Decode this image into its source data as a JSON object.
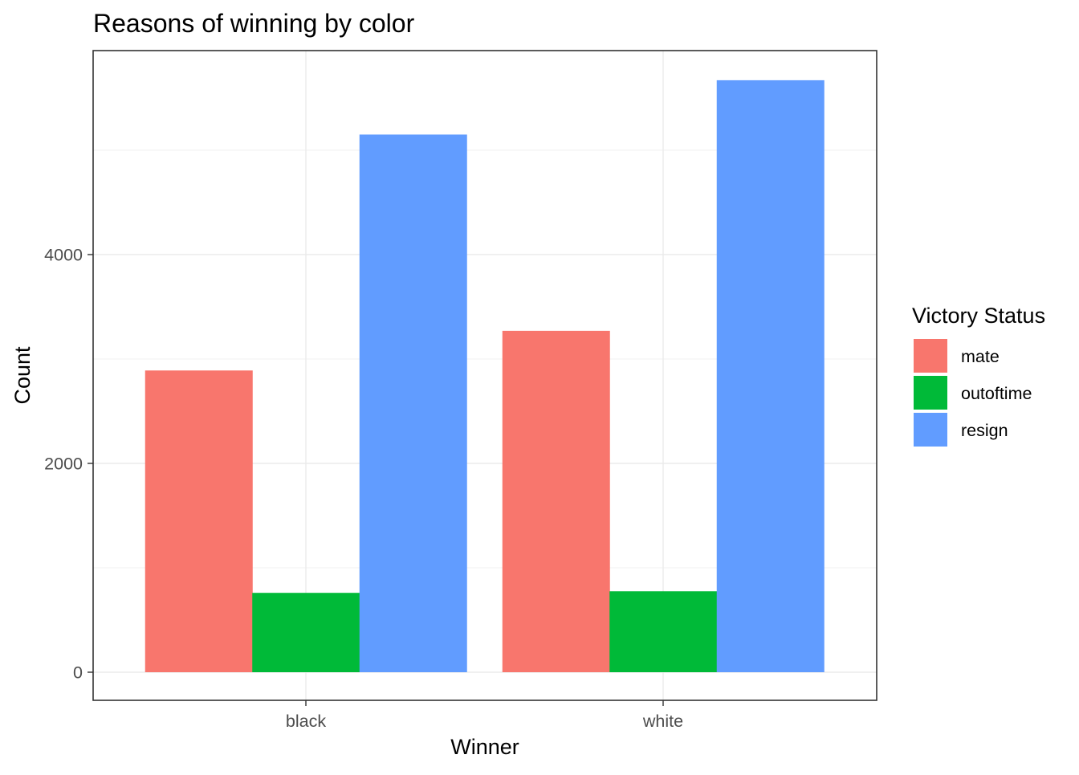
{
  "chart_data": {
    "type": "bar",
    "title": "Reasons of winning by color",
    "xlabel": "Winner",
    "ylabel": "Count",
    "categories": [
      "black",
      "white"
    ],
    "series": [
      {
        "name": "mate",
        "color": "#F8766D",
        "values": [
          2890,
          3270
        ]
      },
      {
        "name": "outoftime",
        "color": "#00BA38",
        "values": [
          760,
          775
        ]
      },
      {
        "name": "resign",
        "color": "#619CFF",
        "values": [
          5150,
          5670
        ]
      }
    ],
    "ylim": [
      0,
      5900
    ],
    "yticks": [
      0,
      2000,
      4000
    ],
    "y_tick_labels": [
      "0",
      "2000",
      "4000"
    ],
    "legend": {
      "title": "Victory Status",
      "position": "right"
    },
    "grid": true
  }
}
